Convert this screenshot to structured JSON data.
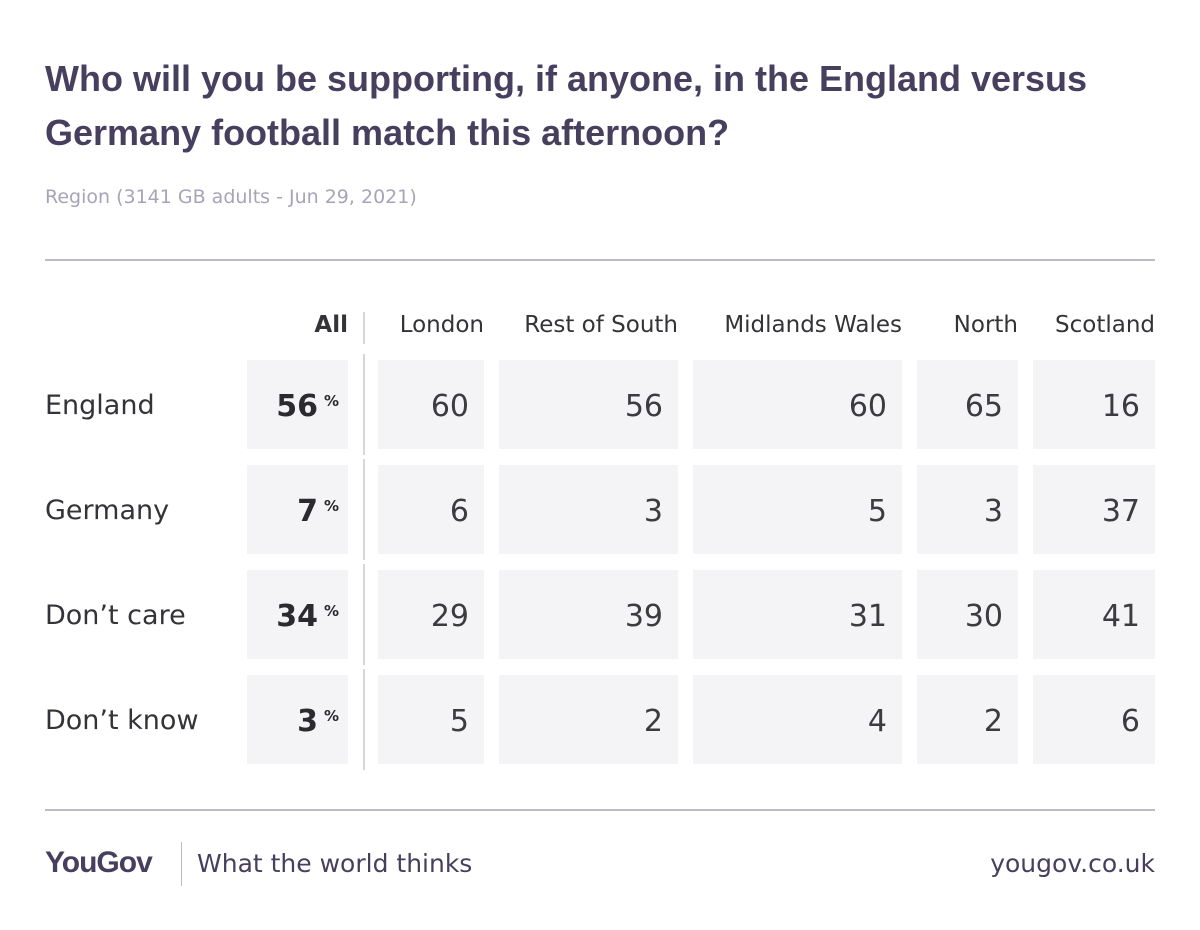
{
  "chart_data": {
    "type": "table",
    "title": "Who will you be supporting, if anyone, in the England versus Germany football match this afternoon?",
    "subtitle": "Region (3141 GB adults - Jun 29, 2021)",
    "all_label": "All",
    "unit": "%",
    "columns": [
      "London",
      "Rest of South",
      "Midlands Wales",
      "North",
      "Scotland"
    ],
    "rows": [
      {
        "label": "England",
        "all": 56,
        "values": [
          60,
          56,
          60,
          65,
          16
        ]
      },
      {
        "label": "Germany",
        "all": 7,
        "values": [
          6,
          3,
          5,
          3,
          37
        ]
      },
      {
        "label": "Don’t care",
        "all": 34,
        "values": [
          29,
          39,
          31,
          30,
          41
        ]
      },
      {
        "label": "Don’t know",
        "all": 3,
        "values": [
          5,
          2,
          4,
          2,
          6
        ]
      }
    ]
  },
  "footer": {
    "logo": "YouGov",
    "tagline": "What the world thinks",
    "site": "yougov.co.uk"
  },
  "colors": {
    "title": "#463f5e",
    "subtitle": "#a8a3b8",
    "cell_background": "#f4f4f7",
    "rule": "#bdbac7"
  }
}
